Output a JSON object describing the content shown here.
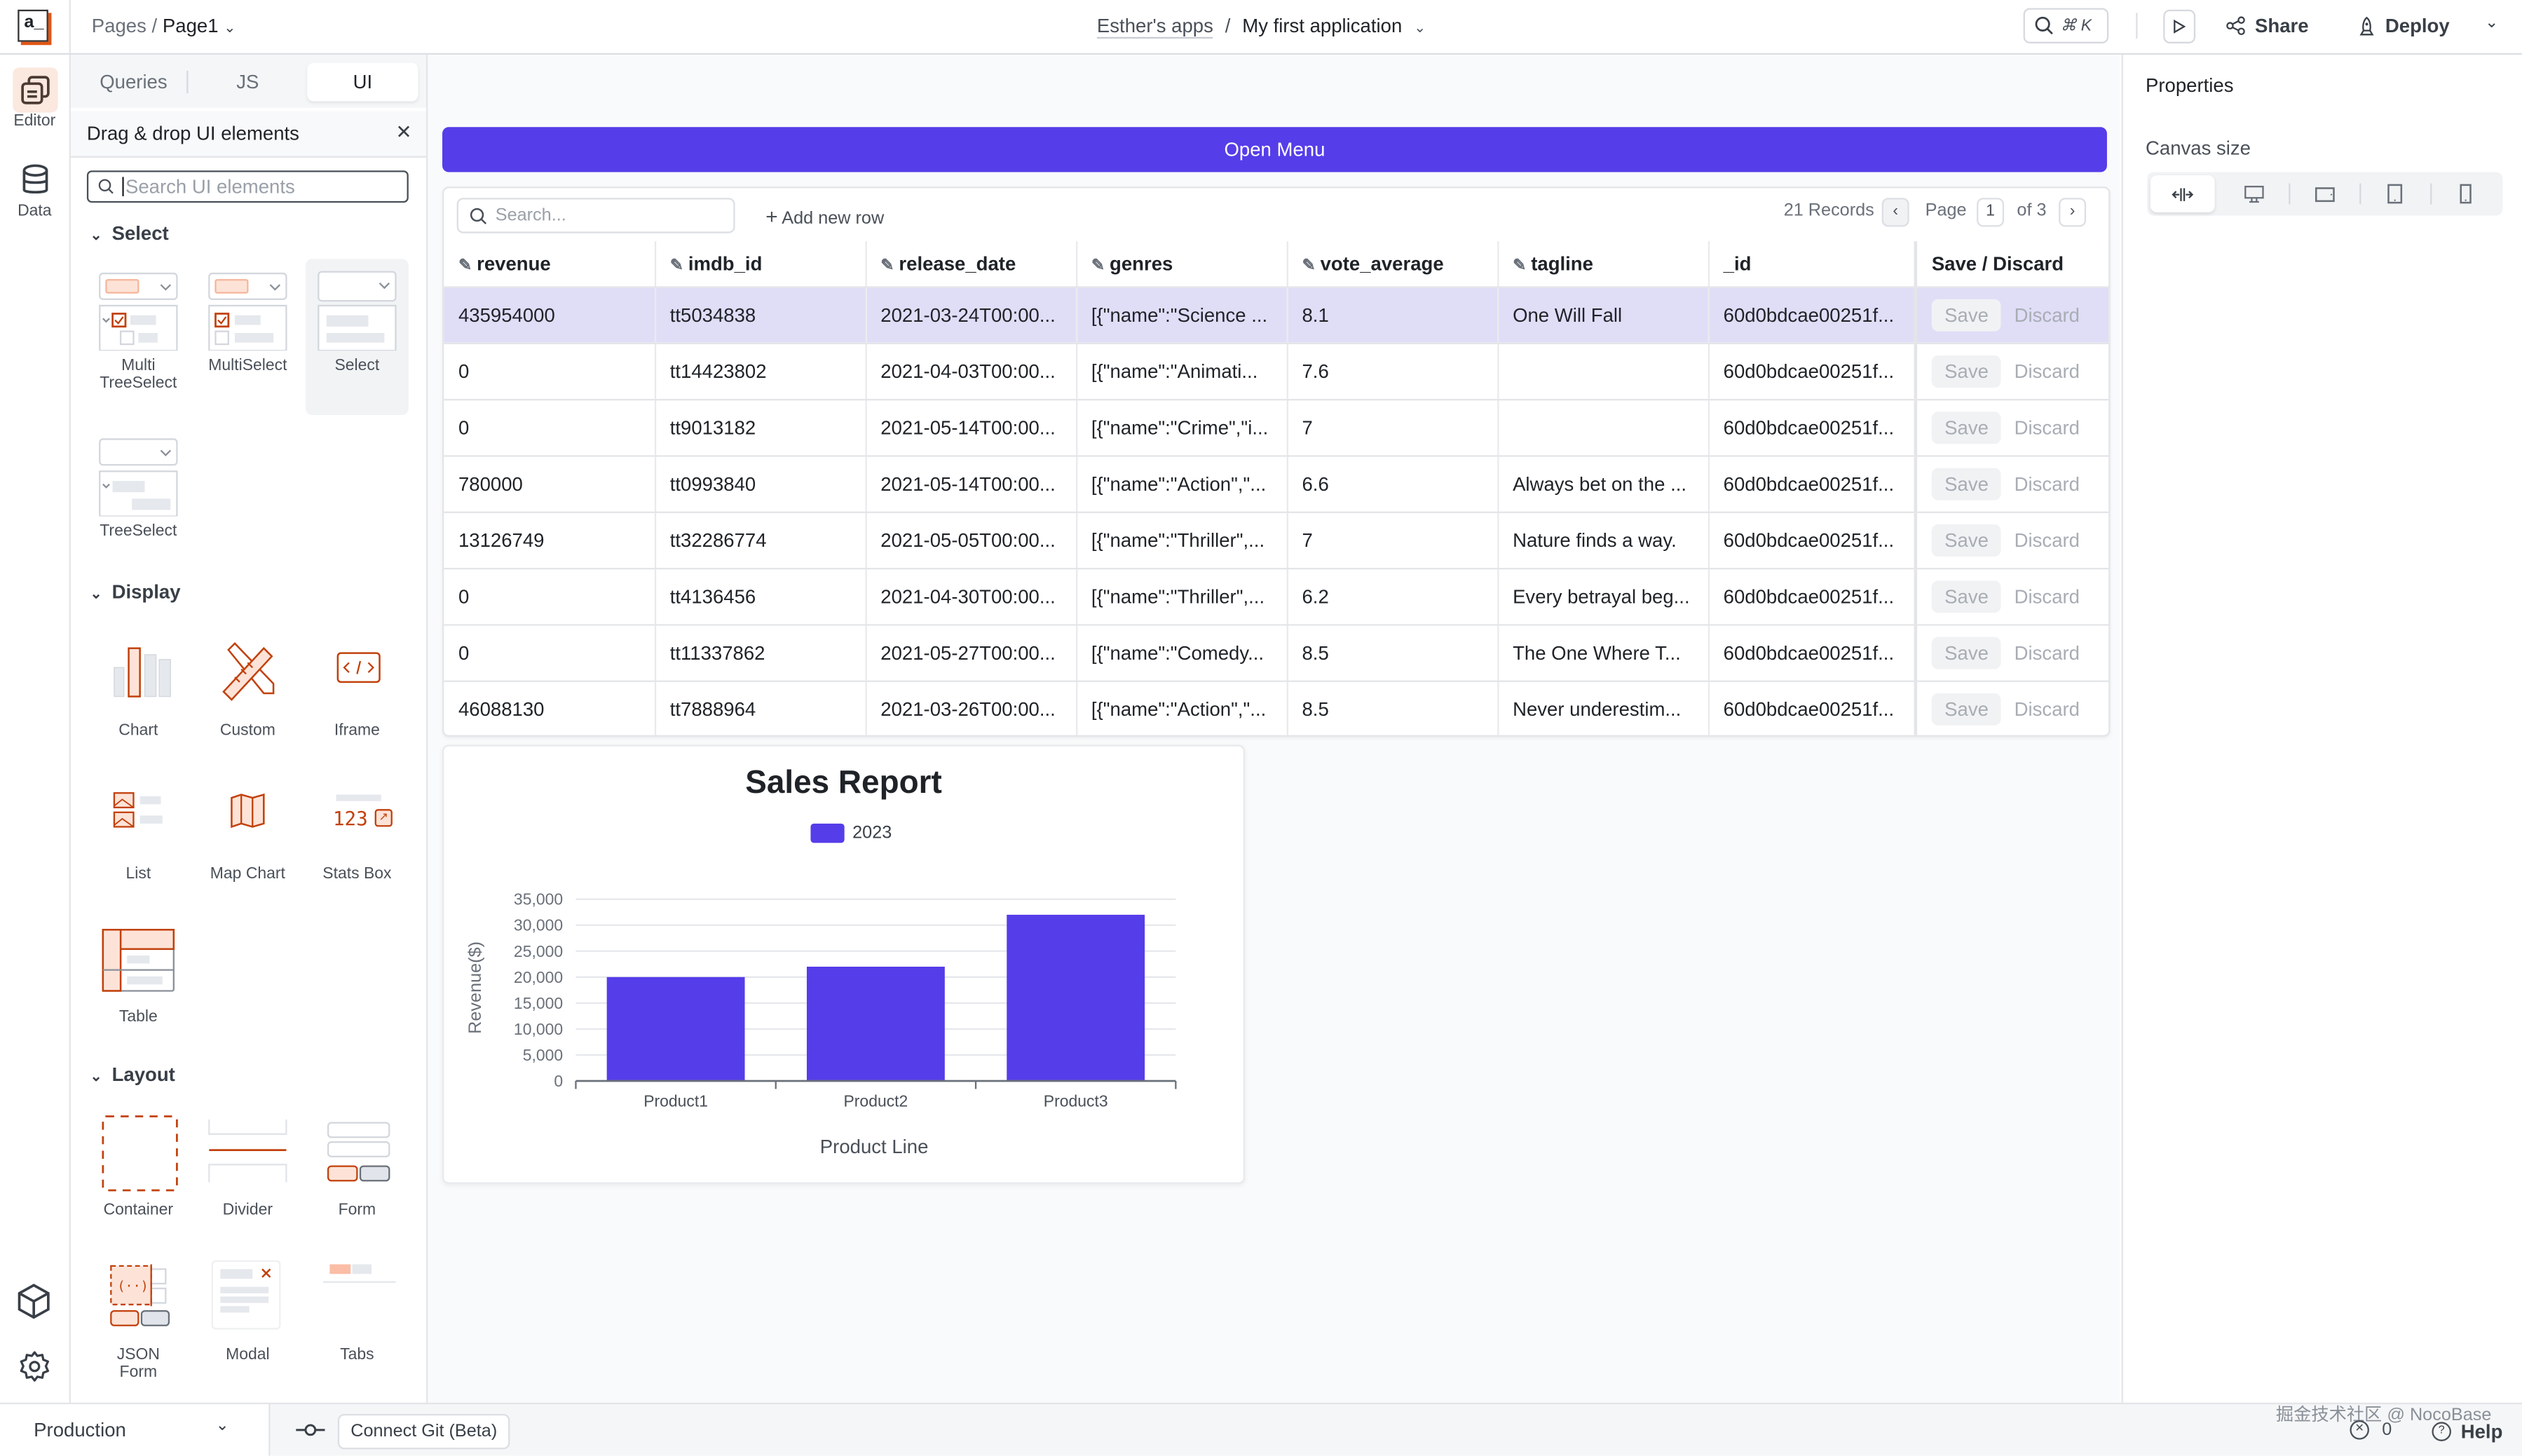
{
  "topbar": {
    "logo": "a_",
    "breadcrumb_root": "Pages",
    "breadcrumb_sep": "/",
    "breadcrumb_page": "Page1",
    "workspace": "Esther's apps",
    "app_sep": "/",
    "app_name": "My first application",
    "search_shortcut": "⌘ K",
    "share_label": "Share",
    "deploy_label": "Deploy"
  },
  "rail": {
    "items": [
      {
        "label": "Editor",
        "icon": "editor-icon",
        "active": true
      },
      {
        "label": "Data",
        "icon": "database-icon",
        "active": false
      }
    ],
    "bottom_icons": [
      "packages-icon",
      "settings-icon"
    ]
  },
  "left_panel": {
    "tabs": [
      {
        "label": "Queries",
        "active": false
      },
      {
        "label": "JS",
        "active": false
      },
      {
        "label": "UI",
        "active": true
      }
    ],
    "header": "Drag & drop UI elements",
    "close_glyph": "✕",
    "search_placeholder": "Search UI elements",
    "sections": [
      {
        "title": "Select",
        "widgets": [
          {
            "label": "Multi TreeSelect",
            "icon": "multi-treeselect-icon"
          },
          {
            "label": "MultiSelect",
            "icon": "multiselect-icon"
          },
          {
            "label": "Select",
            "icon": "select-icon",
            "selected": true
          },
          {
            "label": "TreeSelect",
            "icon": "treeselect-icon"
          }
        ]
      },
      {
        "title": "Display",
        "widgets": [
          {
            "label": "Chart",
            "icon": "chart-icon"
          },
          {
            "label": "Custom",
            "icon": "custom-icon"
          },
          {
            "label": "Iframe",
            "icon": "iframe-icon"
          },
          {
            "label": "List",
            "icon": "list-icon"
          },
          {
            "label": "Map Chart",
            "icon": "map-icon"
          },
          {
            "label": "Stats Box",
            "icon": "stats-box-icon",
            "stat_text": "123"
          },
          {
            "label": "Table",
            "icon": "table-icon"
          }
        ]
      },
      {
        "title": "Layout",
        "widgets": [
          {
            "label": "Container",
            "icon": "container-icon"
          },
          {
            "label": "Divider",
            "icon": "divider-icon"
          },
          {
            "label": "Form",
            "icon": "form-icon"
          },
          {
            "label": "JSON Form",
            "icon": "json-form-icon"
          },
          {
            "label": "Modal",
            "icon": "modal-icon"
          },
          {
            "label": "Tabs",
            "icon": "tabs-icon"
          }
        ]
      }
    ]
  },
  "canvas": {
    "open_menu_label": "Open Menu",
    "accent": "#553de9",
    "table": {
      "search_placeholder": "Search...",
      "add_row_label": "Add new row",
      "records_label": "21 Records",
      "page_label": "Page",
      "page_current": "1",
      "page_total_label": "of 3",
      "columns": [
        {
          "label": "revenue",
          "editable": true
        },
        {
          "label": "imdb_id",
          "editable": true
        },
        {
          "label": "release_date",
          "editable": true
        },
        {
          "label": "genres",
          "editable": true
        },
        {
          "label": "vote_average",
          "editable": true
        },
        {
          "label": "tagline",
          "editable": true
        },
        {
          "label": "_id",
          "editable": false
        },
        {
          "label": "Save / Discard",
          "editable": false
        }
      ],
      "save_label": "Save",
      "discard_label": "Discard",
      "rows": [
        {
          "highlighted": true,
          "cells": [
            "435954000",
            "tt5034838",
            "2021-03-24T00:00...",
            "[{\"name\":\"Science ...",
            "8.1",
            "One Will Fall",
            "60d0bdcae00251f..."
          ]
        },
        {
          "highlighted": false,
          "cells": [
            "0",
            "tt14423802",
            "2021-04-03T00:00...",
            "[{\"name\":\"Animati...",
            "7.6",
            "",
            "60d0bdcae00251f..."
          ]
        },
        {
          "highlighted": false,
          "cells": [
            "0",
            "tt9013182",
            "2021-05-14T00:00...",
            "[{\"name\":\"Crime\",\"i...",
            "7",
            "",
            "60d0bdcae00251f..."
          ]
        },
        {
          "highlighted": false,
          "cells": [
            "780000",
            "tt0993840",
            "2021-05-14T00:00...",
            "[{\"name\":\"Action\",\"...",
            "6.6",
            "Always bet on the ...",
            "60d0bdcae00251f..."
          ]
        },
        {
          "highlighted": false,
          "cells": [
            "13126749",
            "tt32286774",
            "2021-05-05T00:00...",
            "[{\"name\":\"Thriller\",...",
            "7",
            "Nature finds a way.",
            "60d0bdcae00251f..."
          ]
        },
        {
          "highlighted": false,
          "cells": [
            "0",
            "tt4136456",
            "2021-04-30T00:00...",
            "[{\"name\":\"Thriller\",...",
            "6.2",
            "Every betrayal beg...",
            "60d0bdcae00251f..."
          ]
        },
        {
          "highlighted": false,
          "cells": [
            "0",
            "tt11337862",
            "2021-05-27T00:00...",
            "[{\"name\":\"Comedy...",
            "8.5",
            "The One Where T...",
            "60d0bdcae00251f..."
          ]
        },
        {
          "highlighted": false,
          "cells": [
            "46088130",
            "tt7888964",
            "2021-03-26T00:00...",
            "[{\"name\":\"Action\",\"...",
            "8.5",
            "Never underestim...",
            "60d0bdcae00251f..."
          ]
        }
      ]
    }
  },
  "chart_data": {
    "type": "bar",
    "title": "Sales Report",
    "categories": [
      "Product1",
      "Product2",
      "Product3"
    ],
    "series": [
      {
        "name": "2023",
        "values": [
          20000,
          22000,
          32000
        ],
        "color": "#553de9"
      }
    ],
    "xlabel": "Product Line",
    "ylabel": "Revenue($)",
    "ylim": [
      0,
      35000
    ],
    "yticks": [
      "0",
      "5,000",
      "10,000",
      "15,000",
      "20,000",
      "25,000",
      "30,000",
      "35,000"
    ],
    "grid": true,
    "legend_position": "top"
  },
  "right_panel": {
    "title": "Properties",
    "canvas_size_label": "Canvas size",
    "canvas_sizes": [
      {
        "icon": "fluid-width-icon",
        "active": true
      },
      {
        "icon": "desktop-icon",
        "active": false
      },
      {
        "icon": "tablet-landscape-icon",
        "active": false
      },
      {
        "icon": "tablet-portrait-icon",
        "active": false
      },
      {
        "icon": "mobile-icon",
        "active": false
      }
    ]
  },
  "bottombar": {
    "environment": "Production",
    "git_label": "Connect Git (Beta)",
    "error_count": "0",
    "help_label": "Help",
    "watermark": "掘金技术社区 @ NocoBase"
  }
}
